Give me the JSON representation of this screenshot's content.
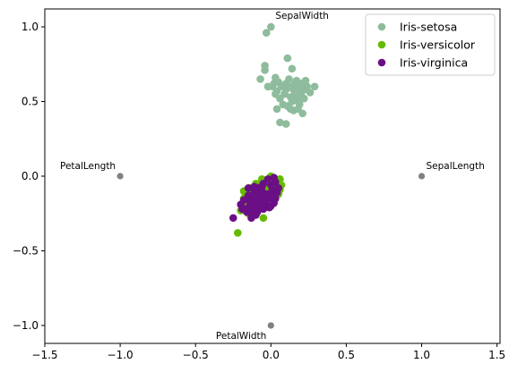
{
  "chart_data": {
    "type": "scatter",
    "title": "",
    "xlabel": "",
    "ylabel": "",
    "xlim": [
      -1.5,
      1.52
    ],
    "ylim": [
      -1.12,
      1.12
    ],
    "xticks": [
      -1.5,
      -1.0,
      -0.5,
      0.0,
      0.5,
      1.0,
      1.5
    ],
    "xtick_labels": [
      "−1.5",
      "−1.0",
      "−0.5",
      "0.0",
      "0.5",
      "1.0",
      "1.5"
    ],
    "yticks": [
      -1.0,
      -0.5,
      0.0,
      0.5,
      1.0
    ],
    "ytick_labels": [
      "−1.0",
      "−0.5",
      "0.0",
      "0.5",
      "1.0"
    ],
    "grid": false,
    "legend_position": "top-right",
    "anchors": {
      "color": "#808080",
      "points": [
        {
          "label": "SepalLength",
          "x": 1.0,
          "y": 0.0
        },
        {
          "label": "SepalWidth",
          "x": 0.0,
          "y": 1.0
        },
        {
          "label": "PetalLength",
          "x": -1.0,
          "y": 0.0
        },
        {
          "label": "PetalWidth",
          "x": 0.0,
          "y": -1.0
        }
      ]
    },
    "series": [
      {
        "name": "Iris-setosa",
        "color": "#8fbc9c",
        "points": [
          [
            -0.03,
            0.96
          ],
          [
            0.0,
            1.0
          ],
          [
            0.11,
            0.79
          ],
          [
            -0.04,
            0.74
          ],
          [
            -0.04,
            0.71
          ],
          [
            0.03,
            0.66
          ],
          [
            0.17,
            0.64
          ],
          [
            0.23,
            0.64
          ],
          [
            0.29,
            0.6
          ],
          [
            0.26,
            0.56
          ],
          [
            -0.07,
            0.65
          ],
          [
            0.14,
            0.72
          ],
          [
            0.01,
            0.6
          ],
          [
            0.04,
            0.57
          ],
          [
            0.06,
            0.52
          ],
          [
            0.1,
            0.62
          ],
          [
            0.12,
            0.6
          ],
          [
            0.15,
            0.58
          ],
          [
            0.18,
            0.6
          ],
          [
            0.2,
            0.55
          ],
          [
            0.22,
            0.58
          ],
          [
            0.08,
            0.48
          ],
          [
            0.11,
            0.47
          ],
          [
            0.14,
            0.5
          ],
          [
            0.17,
            0.52
          ],
          [
            0.19,
            0.48
          ],
          [
            0.21,
            0.42
          ],
          [
            0.15,
            0.44
          ],
          [
            0.13,
            0.45
          ],
          [
            0.09,
            0.55
          ],
          [
            0.07,
            0.6
          ],
          [
            0.12,
            0.65
          ],
          [
            0.16,
            0.62
          ],
          [
            0.2,
            0.62
          ],
          [
            0.24,
            0.6
          ],
          [
            0.06,
            0.36
          ],
          [
            0.1,
            0.35
          ],
          [
            0.18,
            0.5
          ],
          [
            0.03,
            0.55
          ],
          [
            0.13,
            0.53
          ],
          [
            0.16,
            0.55
          ],
          [
            0.2,
            0.58
          ],
          [
            0.05,
            0.63
          ],
          [
            0.02,
            0.62
          ],
          [
            0.18,
            0.45
          ],
          [
            0.22,
            0.52
          ],
          [
            0.1,
            0.58
          ],
          [
            0.14,
            0.6
          ],
          [
            -0.02,
            0.6
          ],
          [
            0.04,
            0.45
          ]
        ]
      },
      {
        "name": "Iris-versicolor",
        "color": "#66bb00",
        "points": [
          [
            -0.22,
            -0.38
          ],
          [
            -0.05,
            -0.28
          ],
          [
            0.04,
            -0.03
          ],
          [
            0.06,
            -0.02
          ],
          [
            0.0,
            -0.04
          ],
          [
            -0.02,
            -0.06
          ],
          [
            0.03,
            -0.08
          ],
          [
            -0.06,
            -0.1
          ],
          [
            -0.1,
            -0.12
          ],
          [
            -0.13,
            -0.14
          ],
          [
            -0.16,
            -0.16
          ],
          [
            -0.12,
            -0.09
          ],
          [
            -0.08,
            -0.06
          ],
          [
            -0.04,
            -0.05
          ],
          [
            0.02,
            -0.1
          ],
          [
            0.05,
            -0.12
          ],
          [
            0.07,
            -0.06
          ],
          [
            -0.19,
            -0.2
          ],
          [
            -0.2,
            -0.23
          ],
          [
            -0.15,
            -0.25
          ],
          [
            -0.11,
            -0.22
          ],
          [
            -0.07,
            -0.18
          ],
          [
            -0.03,
            -0.15
          ],
          [
            0.01,
            -0.13
          ],
          [
            -0.18,
            -0.1
          ],
          [
            -0.14,
            -0.08
          ],
          [
            -0.1,
            -0.05
          ],
          [
            -0.06,
            -0.02
          ],
          [
            0.0,
            0.0
          ],
          [
            0.03,
            -0.02
          ],
          [
            -0.09,
            -0.14
          ],
          [
            -0.05,
            -0.13
          ],
          [
            -0.01,
            -0.1
          ],
          [
            0.02,
            -0.06
          ],
          [
            -0.12,
            -0.18
          ],
          [
            -0.17,
            -0.12
          ],
          [
            -0.13,
            -0.11
          ],
          [
            -0.08,
            -0.09
          ],
          [
            -0.04,
            -0.08
          ],
          [
            -0.02,
            -0.03
          ],
          [
            0.04,
            -0.05
          ],
          [
            0.06,
            -0.09
          ],
          [
            -0.15,
            -0.18
          ],
          [
            -0.11,
            -0.15
          ],
          [
            -0.07,
            -0.12
          ],
          [
            -0.03,
            -0.11
          ],
          [
            0.01,
            -0.07
          ],
          [
            -0.18,
            -0.15
          ],
          [
            -0.1,
            -0.2
          ],
          [
            -0.06,
            -0.16
          ]
        ]
      },
      {
        "name": "Iris-virginica",
        "color": "#6b0f86",
        "points": [
          [
            -0.25,
            -0.28
          ],
          [
            -0.13,
            -0.28
          ],
          [
            -0.1,
            -0.26
          ],
          [
            -0.08,
            -0.22
          ],
          [
            -0.04,
            -0.18
          ],
          [
            0.0,
            -0.2
          ],
          [
            0.03,
            -0.15
          ],
          [
            0.02,
            -0.1
          ],
          [
            0.0,
            -0.06
          ],
          [
            -0.02,
            -0.12
          ],
          [
            -0.06,
            -0.14
          ],
          [
            -0.1,
            -0.16
          ],
          [
            -0.14,
            -0.2
          ],
          [
            -0.16,
            -0.24
          ],
          [
            -0.12,
            -0.21
          ],
          [
            -0.07,
            -0.19
          ],
          [
            -0.03,
            -0.16
          ],
          [
            0.01,
            -0.13
          ],
          [
            0.04,
            -0.11
          ],
          [
            0.05,
            -0.08
          ],
          [
            0.03,
            -0.04
          ],
          [
            0.02,
            -0.01
          ],
          [
            -0.02,
            -0.02
          ],
          [
            -0.05,
            -0.05
          ],
          [
            -0.08,
            -0.08
          ],
          [
            -0.11,
            -0.11
          ],
          [
            -0.15,
            -0.13
          ],
          [
            -0.18,
            -0.16
          ],
          [
            -0.2,
            -0.19
          ],
          [
            -0.17,
            -0.22
          ],
          [
            -0.09,
            -0.24
          ],
          [
            -0.05,
            -0.22
          ],
          [
            -0.01,
            -0.21
          ],
          [
            0.02,
            -0.18
          ],
          [
            -0.06,
            -0.1
          ],
          [
            -0.09,
            -0.12
          ],
          [
            -0.12,
            -0.14
          ],
          [
            -0.04,
            -0.12
          ],
          [
            0.01,
            -0.09
          ],
          [
            -0.14,
            -0.17
          ],
          [
            -0.1,
            -0.19
          ],
          [
            -0.07,
            -0.16
          ],
          [
            -0.03,
            -0.13
          ],
          [
            0.0,
            -0.15
          ],
          [
            -0.15,
            -0.08
          ],
          [
            -0.11,
            -0.07
          ],
          [
            -0.06,
            -0.07
          ],
          [
            -0.19,
            -0.22
          ],
          [
            -0.13,
            -0.24
          ],
          [
            -0.08,
            -0.2
          ]
        ]
      }
    ]
  }
}
